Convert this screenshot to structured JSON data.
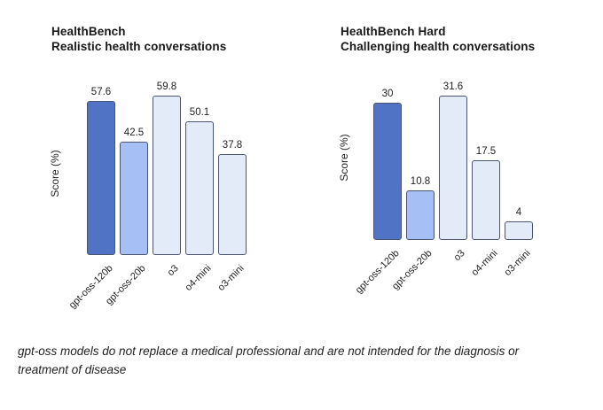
{
  "page": {
    "background_color": "#ffffff",
    "text_color": "#1f1f1f"
  },
  "footer": {
    "disclaimer": "gpt-oss models do not replace a medical professional and are not intended for the diagnosis or treatment of disease"
  },
  "palette": {
    "bar_dark_blue": "#5073C6",
    "bar_medium_blue": "#A6BFF4",
    "bar_light_blue": "#E3EBF9",
    "bar_border": "#4a5670"
  },
  "chart_data": [
    {
      "type": "bar",
      "title": "HealthBench",
      "subtitle": "Realistic health conversations",
      "ylabel": "Score (%)",
      "xlabel": "",
      "categories": [
        "gpt-oss-120b",
        "gpt-oss-20b",
        "o3",
        "o4-mini",
        "o3-mini"
      ],
      "values": [
        57.6,
        42.5,
        59.8,
        50.1,
        37.8
      ],
      "value_labels": [
        "57.6",
        "42.5",
        "59.8",
        "50.1",
        "37.8"
      ],
      "colors": [
        "#5073C6",
        "#A6BFF4",
        "#E3EBF9",
        "#E3EBF9",
        "#E3EBF9"
      ],
      "ylim": [
        0,
        60
      ],
      "grid": false,
      "legend": "none",
      "tick_label_rotation_deg": 45
    },
    {
      "type": "bar",
      "title": "HealthBench Hard",
      "subtitle": "Challenging health conversations",
      "ylabel": "Score (%)",
      "xlabel": "",
      "categories": [
        "gpt-oss-120b",
        "gpt-oss-20b",
        "o3",
        "o4-mini",
        "o3-mini"
      ],
      "values": [
        30,
        10.8,
        31.6,
        17.5,
        4
      ],
      "value_labels": [
        "30",
        "10.8",
        "31.6",
        "17.5",
        "4"
      ],
      "colors": [
        "#5073C6",
        "#A6BFF4",
        "#E3EBF9",
        "#E3EBF9",
        "#E3EBF9"
      ],
      "ylim": [
        0,
        32
      ],
      "grid": false,
      "legend": "none",
      "tick_label_rotation_deg": 45
    }
  ]
}
